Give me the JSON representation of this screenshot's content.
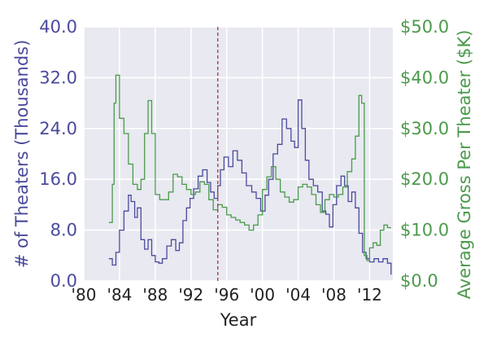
{
  "colors": {
    "plot_bg": "#e8e9f1",
    "grid": "#ffffff",
    "theaters": "#4a4a9c",
    "gross": "#4b9a4b",
    "marker": "#b04a4a",
    "x_text": "#222222"
  },
  "chart_data": {
    "type": "line",
    "xlabel": "Year",
    "ylabel_left": "# of Theaters (Thousands)",
    "ylabel_right": "Average Gross Per Theater ($K)",
    "xlim": [
      1980,
      2014.6
    ],
    "ylim_left": [
      0,
      40
    ],
    "ylim_right": [
      0,
      50
    ],
    "grid": true,
    "x_ticks": [
      1980,
      1984,
      1988,
      1992,
      1996,
      2000,
      2004,
      2008,
      2012
    ],
    "x_tick_labels": [
      "'80",
      "'84",
      "'88",
      "'92",
      "'96",
      "'00",
      "'04",
      "'08",
      "'12"
    ],
    "y_left_ticks": [
      0,
      8,
      16,
      24,
      32,
      40
    ],
    "y_left_tick_labels": [
      "0.0",
      "8.0",
      "16.0",
      "24.0",
      "32.0",
      "40.0"
    ],
    "y_right_ticks": [
      0,
      10,
      20,
      30,
      40,
      50
    ],
    "y_right_tick_labels": [
      "$0.0",
      "$10.0",
      "$20.0",
      "$30.0",
      "$40.0",
      "$50.0"
    ],
    "reference_line": {
      "x": 1995.0,
      "style": "dashed"
    },
    "series": [
      {
        "name": "# of Theaters (Thousands)",
        "axis": "left",
        "x": [
          1982.8,
          1983.2,
          1983.6,
          1984.0,
          1984.5,
          1985.0,
          1985.3,
          1985.7,
          1986.0,
          1986.4,
          1986.8,
          1987.2,
          1987.6,
          1988.0,
          1988.4,
          1988.8,
          1989.3,
          1989.8,
          1990.3,
          1990.7,
          1991.1,
          1991.5,
          1991.9,
          1992.3,
          1992.8,
          1993.3,
          1993.8,
          1994.2,
          1994.6,
          1995.0,
          1995.3,
          1995.7,
          1996.2,
          1996.7,
          1997.2,
          1997.7,
          1998.2,
          1998.8,
          1999.3,
          1999.8,
          2000.3,
          2000.7,
          2001.2,
          2001.7,
          2002.2,
          2002.7,
          2003.2,
          2003.6,
          2004.0,
          2004.4,
          2004.8,
          2005.2,
          2005.7,
          2006.2,
          2006.7,
          2007.1,
          2007.5,
          2007.9,
          2008.3,
          2008.8,
          2009.2,
          2009.6,
          2010.0,
          2010.4,
          2010.8,
          2011.2,
          2011.6,
          2012.0,
          2012.5,
          2013.0,
          2013.5,
          2014.0,
          2014.4
        ],
        "y": [
          3.5,
          2.5,
          4.5,
          8.0,
          11.0,
          13.5,
          12.5,
          10.0,
          11.5,
          6.5,
          5.0,
          6.5,
          4.0,
          3.0,
          2.8,
          3.5,
          5.5,
          6.5,
          4.8,
          6.0,
          9.5,
          11.5,
          13.0,
          14.5,
          16.5,
          17.5,
          15.5,
          14.0,
          13.0,
          15.0,
          17.5,
          19.5,
          18.0,
          20.5,
          19.0,
          17.0,
          15.0,
          14.0,
          13.0,
          11.0,
          13.5,
          16.0,
          20.0,
          21.5,
          25.5,
          24.0,
          22.0,
          21.0,
          28.5,
          24.0,
          19.0,
          16.0,
          15.0,
          14.0,
          11.0,
          10.5,
          8.5,
          12.0,
          15.0,
          16.5,
          15.0,
          12.5,
          14.0,
          11.5,
          7.5,
          4.5,
          3.5,
          3.0,
          3.5,
          3.0,
          3.5,
          2.8,
          1.0
        ]
      },
      {
        "name": "Average Gross Per Theater ($K)",
        "axis": "right",
        "x": [
          1982.8,
          1983.2,
          1983.4,
          1983.6,
          1984.0,
          1984.5,
          1985.0,
          1985.5,
          1986.0,
          1986.4,
          1986.8,
          1987.2,
          1987.6,
          1988.0,
          1988.5,
          1989.0,
          1989.5,
          1990.0,
          1990.5,
          1991.0,
          1991.5,
          1992.0,
          1992.5,
          1993.0,
          1993.5,
          1994.0,
          1994.5,
          1995.0,
          1995.5,
          1996.0,
          1996.5,
          1997.0,
          1997.5,
          1998.0,
          1998.5,
          1999.0,
          1999.5,
          2000.0,
          2000.5,
          2001.0,
          2001.5,
          2002.0,
          2002.5,
          2003.0,
          2003.5,
          2004.0,
          2004.5,
          2005.0,
          2005.5,
          2006.0,
          2006.5,
          2007.0,
          2007.5,
          2008.0,
          2008.5,
          2009.0,
          2009.5,
          2010.0,
          2010.4,
          2010.8,
          2011.1,
          2011.4,
          2011.7,
          2012.0,
          2012.4,
          2012.8,
          2013.2,
          2013.6,
          2014.0,
          2014.4
        ],
        "y": [
          11.5,
          19.0,
          35.0,
          40.5,
          32.0,
          29.0,
          23.0,
          19.0,
          18.0,
          20.0,
          29.0,
          35.5,
          29.0,
          17.0,
          16.0,
          16.0,
          17.5,
          21.0,
          20.5,
          19.0,
          18.0,
          17.0,
          17.5,
          19.5,
          19.0,
          16.0,
          14.0,
          15.0,
          14.5,
          13.0,
          12.5,
          12.0,
          11.5,
          11.0,
          10.0,
          11.0,
          13.0,
          18.0,
          20.5,
          22.5,
          20.0,
          17.5,
          16.5,
          15.5,
          16.0,
          18.5,
          19.0,
          18.5,
          17.0,
          15.0,
          13.5,
          16.0,
          17.0,
          16.5,
          17.0,
          18.5,
          21.5,
          24.0,
          28.5,
          36.5,
          35.0,
          5.0,
          4.0,
          6.5,
          7.5,
          7.0,
          10.0,
          11.0,
          10.5,
          10.5
        ]
      }
    ]
  }
}
